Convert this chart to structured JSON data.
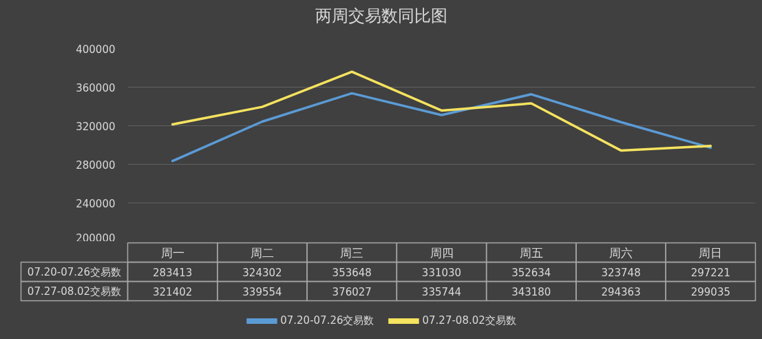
{
  "chart_data": {
    "type": "line",
    "title": "两周交易数同比图",
    "categories": [
      "周一",
      "周二",
      "周三",
      "周四",
      "周五",
      "周六",
      "周日"
    ],
    "series": [
      {
        "name": "07.20-07.26交易数",
        "color": "#5b9bd5",
        "values": [
          283413,
          324302,
          353648,
          331030,
          352634,
          323748,
          297221
        ]
      },
      {
        "name": "07.27-08.02交易数",
        "color": "#f5e35f",
        "values": [
          321402,
          339554,
          376027,
          335744,
          343180,
          294363,
          299035
        ]
      }
    ],
    "ylim": [
      200000,
      400000
    ],
    "yticks": [
      200000,
      240000,
      280000,
      320000,
      360000,
      400000
    ],
    "grid": "y",
    "legend": "bottom",
    "data_labels": true
  }
}
